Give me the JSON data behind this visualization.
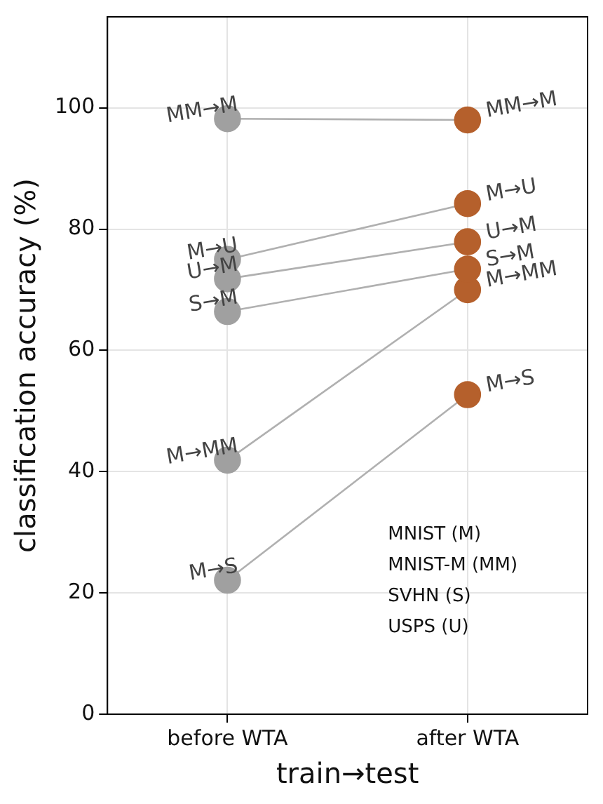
{
  "chart_data": {
    "type": "line",
    "xlabel": "train→test",
    "ylabel": "classification accuracy (%)",
    "categories": [
      "before WTA",
      "after WTA"
    ],
    "series": [
      {
        "name": "MM→M",
        "color": "#b0b0b0",
        "colors": [
          "#a0a0a0",
          "#b5602c"
        ],
        "values": [
          98.2,
          98.0
        ]
      },
      {
        "name": "M→U",
        "color": "#b0b0b0",
        "colors": [
          "#a0a0a0",
          "#b5602c"
        ],
        "values": [
          75.0,
          84.2
        ]
      },
      {
        "name": "U→M",
        "color": "#b0b0b0",
        "colors": [
          "#a0a0a0",
          "#b5602c"
        ],
        "values": [
          71.8,
          77.9
        ]
      },
      {
        "name": "S→M",
        "color": "#b0b0b0",
        "colors": [
          "#a0a0a0",
          "#b5602c"
        ],
        "values": [
          66.4,
          73.4
        ]
      },
      {
        "name": "M→MM",
        "color": "#b0b0b0",
        "colors": [
          "#a0a0a0",
          "#b5602c"
        ],
        "values": [
          41.9,
          70.0
        ]
      },
      {
        "name": "M→S",
        "color": "#b0b0b0",
        "colors": [
          "#a0a0a0",
          "#b5602c"
        ],
        "values": [
          22.1,
          52.7
        ]
      }
    ],
    "ylim": [
      0,
      115
    ],
    "yticks": [
      0,
      20,
      40,
      60,
      80,
      100
    ],
    "grid": true,
    "marker": "circle",
    "line_style": "solid",
    "legend": false,
    "annotations": [
      "MNIST (M)",
      "MNIST-M (MM)",
      "SVHN (S)",
      "USPS (U)"
    ]
  }
}
